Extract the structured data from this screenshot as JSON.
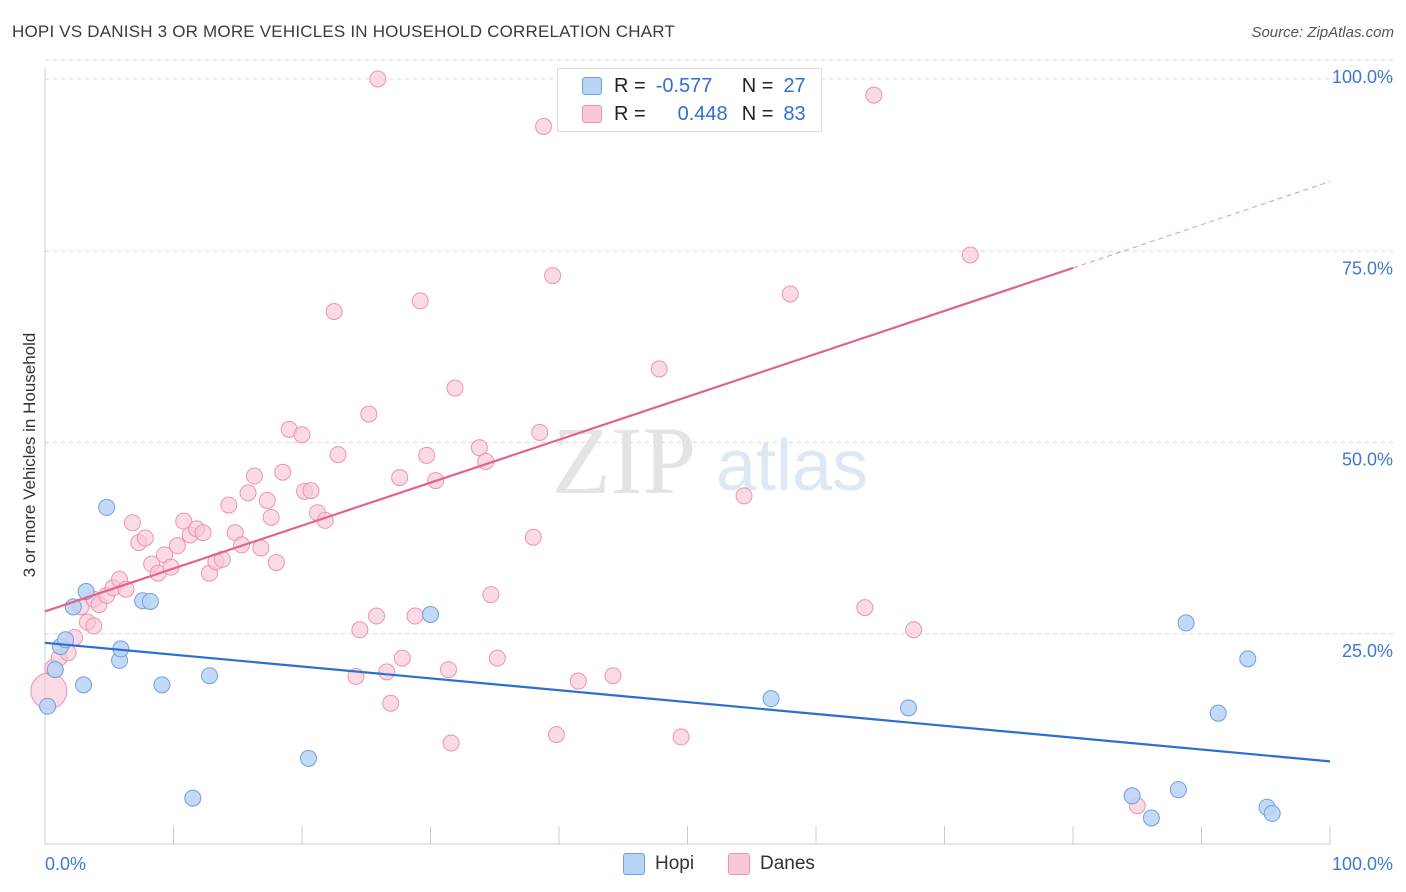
{
  "title": "HOPI VS DANISH 3 OR MORE VEHICLES IN HOUSEHOLD CORRELATION CHART",
  "source": "Source: ZipAtlas.com",
  "watermark": {
    "zip": "ZIP",
    "atlas": "atlas"
  },
  "colors": {
    "hopi_fill": "#b9d3f5",
    "hopi_stroke": "#6f9fe0",
    "hopi_line": "#2b6fd0",
    "danes_fill": "#f8c8d7",
    "danes_stroke": "#ee93b0",
    "danes_line": "#e5628a",
    "axis_value": "#3f78d0",
    "grid": "#d9d9d9"
  },
  "legend": {
    "hopi": {
      "r_label": "R =",
      "r_value": "-0.577",
      "n_label": "N =",
      "n_value": "27"
    },
    "danes": {
      "r_label": "R =",
      "r_value": "0.448",
      "n_label": "N =",
      "n_value": "83"
    }
  },
  "chart_data": {
    "type": "scatter",
    "ylabel": "3 or more Vehicles in Household",
    "xlim": [
      0,
      100
    ],
    "ylim": [
      0,
      100
    ],
    "x_tick_labels": [
      "0.0%",
      "100.0%"
    ],
    "y_ticks": [
      25,
      50,
      75,
      100
    ],
    "y_tick_labels": [
      "25.0%",
      "50.0%",
      "75.0%",
      "100.0%"
    ],
    "grid": true,
    "legend_position": "top-center",
    "series": [
      {
        "name": "Hopi",
        "points": [
          [
            0.2,
            18.0
          ],
          [
            0.8,
            22.8
          ],
          [
            1.2,
            25.8
          ],
          [
            1.6,
            26.7
          ],
          [
            2.2,
            31.0
          ],
          [
            3.0,
            20.8
          ],
          [
            3.2,
            33.0
          ],
          [
            4.8,
            44.0
          ],
          [
            5.8,
            24.0
          ],
          [
            5.9,
            25.5
          ],
          [
            7.6,
            31.8
          ],
          [
            8.2,
            31.7
          ],
          [
            9.1,
            20.8
          ],
          [
            11.5,
            6.0
          ],
          [
            12.8,
            22.0
          ],
          [
            20.5,
            11.2
          ],
          [
            30.0,
            30.0
          ],
          [
            56.5,
            19.0
          ],
          [
            67.2,
            17.8
          ],
          [
            84.6,
            6.3
          ],
          [
            86.1,
            3.4
          ],
          [
            88.2,
            7.1
          ],
          [
            88.8,
            28.9
          ],
          [
            91.3,
            17.1
          ],
          [
            93.6,
            24.2
          ],
          [
            95.1,
            4.8
          ],
          [
            95.5,
            4.0
          ]
        ],
        "trend": {
          "x": [
            0,
            100
          ],
          "y": [
            26.3,
            10.8
          ]
        }
      },
      {
        "name": "Danes",
        "points": [
          [
            0.3,
            20.0
          ],
          [
            0.6,
            23.0
          ],
          [
            1.1,
            24.3
          ],
          [
            1.8,
            25.0
          ],
          [
            2.3,
            27.0
          ],
          [
            2.8,
            31.0
          ],
          [
            3.3,
            29.0
          ],
          [
            3.8,
            32.0
          ],
          [
            4.2,
            31.3
          ],
          [
            4.8,
            32.5
          ],
          [
            5.3,
            33.5
          ],
          [
            5.8,
            34.6
          ],
          [
            6.3,
            33.3
          ],
          [
            6.8,
            42.0
          ],
          [
            7.3,
            39.4
          ],
          [
            7.8,
            40.0
          ],
          [
            8.3,
            36.6
          ],
          [
            8.8,
            35.4
          ],
          [
            9.3,
            37.8
          ],
          [
            9.8,
            36.2
          ],
          [
            10.3,
            39.0
          ],
          [
            10.8,
            42.2
          ],
          [
            11.3,
            40.4
          ],
          [
            11.8,
            41.2
          ],
          [
            12.3,
            40.7
          ],
          [
            12.8,
            35.4
          ],
          [
            13.3,
            36.9
          ],
          [
            13.8,
            37.2
          ],
          [
            14.3,
            44.3
          ],
          [
            14.8,
            40.7
          ],
          [
            15.3,
            39.1
          ],
          [
            15.8,
            45.9
          ],
          [
            16.3,
            48.1
          ],
          [
            16.8,
            38.7
          ],
          [
            17.3,
            44.9
          ],
          [
            17.6,
            42.7
          ],
          [
            18.0,
            36.8
          ],
          [
            18.5,
            48.6
          ],
          [
            19.0,
            54.2
          ],
          [
            20.0,
            53.5
          ],
          [
            20.2,
            46.1
          ],
          [
            20.7,
            46.2
          ],
          [
            21.2,
            43.3
          ],
          [
            21.8,
            42.3
          ],
          [
            22.5,
            69.6
          ],
          [
            22.8,
            50.9
          ],
          [
            24.2,
            21.9
          ],
          [
            24.5,
            28.0
          ],
          [
            25.2,
            56.2
          ],
          [
            25.8,
            29.8
          ],
          [
            25.9,
            100.0
          ],
          [
            26.6,
            22.5
          ],
          [
            26.9,
            18.4
          ],
          [
            27.6,
            47.9
          ],
          [
            27.8,
            24.3
          ],
          [
            28.8,
            29.8
          ],
          [
            29.2,
            71.0
          ],
          [
            29.7,
            50.8
          ],
          [
            30.4,
            47.5
          ],
          [
            31.4,
            22.8
          ],
          [
            31.6,
            13.2
          ],
          [
            31.9,
            59.6
          ],
          [
            33.8,
            51.8
          ],
          [
            34.3,
            50.0
          ],
          [
            34.7,
            32.6
          ],
          [
            35.2,
            24.3
          ],
          [
            38.0,
            40.1
          ],
          [
            38.5,
            53.8
          ],
          [
            38.8,
            93.8
          ],
          [
            39.5,
            74.3
          ],
          [
            39.8,
            14.3
          ],
          [
            41.5,
            21.3
          ],
          [
            44.2,
            22.0
          ],
          [
            47.8,
            62.1
          ],
          [
            49.5,
            14.0
          ],
          [
            54.4,
            45.5
          ],
          [
            58.0,
            71.9
          ],
          [
            63.8,
            30.9
          ],
          [
            64.5,
            97.9
          ],
          [
            72.0,
            77.0
          ],
          [
            67.6,
            28.0
          ],
          [
            85.0,
            5.0
          ],
          [
            3.8,
            28.5
          ]
        ],
        "trend": {
          "x": [
            0,
            80
          ],
          "y": [
            30.4,
            75.3
          ]
        },
        "trend_extension": {
          "x": [
            80,
            100
          ],
          "y": [
            75.3,
            86.6
          ]
        }
      }
    ]
  }
}
